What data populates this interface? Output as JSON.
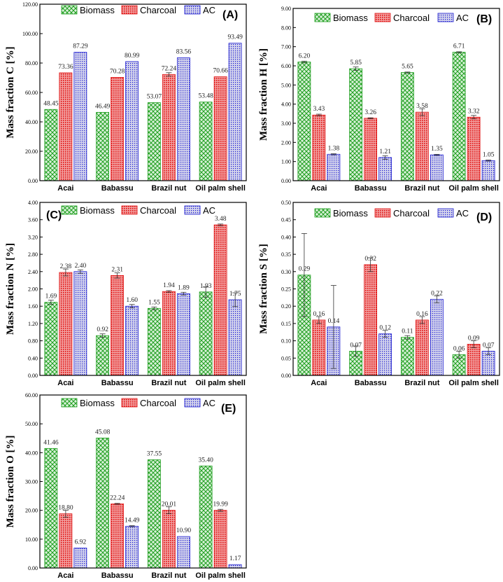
{
  "legend": [
    "Biomass",
    "Charcoal",
    "AC"
  ],
  "colors": {
    "biomass": "#1f9e1f",
    "charcoal": "#e01010",
    "ac": "#1a1ad0",
    "biomass_bg": "#d9f2d9",
    "charcoal_bg": "#f2a2a2",
    "ac_bg": "#d3d3ec"
  },
  "chart_data": [
    {
      "type": "bar",
      "title": "(A)",
      "ylabel": "Mass fraction C [%]",
      "xlabel": "",
      "ylim": [
        0,
        120
      ],
      "yticks": [
        "0.00",
        "20.00",
        "40.00",
        "60.00",
        "80.00",
        "100.00",
        "120.00"
      ],
      "categories": [
        "Acai",
        "Babassu",
        "Brazil nut",
        "Oil palm shell"
      ],
      "series": [
        {
          "name": "Biomass",
          "values": [
            48.45,
            46.49,
            53.07,
            53.48
          ],
          "labels": [
            "48.45",
            "46.49",
            "53.07",
            "53.48"
          ]
        },
        {
          "name": "Charcoal",
          "values": [
            73.36,
            70.28,
            72.24,
            70.66
          ],
          "labels": [
            "73.36",
            "70.28",
            "72.24",
            "70.66"
          ]
        },
        {
          "name": "AC",
          "values": [
            87.29,
            80.99,
            83.56,
            93.49
          ],
          "labels": [
            "87.29",
            "80.99",
            "83.56",
            "93.49"
          ]
        }
      ]
    },
    {
      "type": "bar",
      "title": "(B)",
      "ylabel": "Mass fraction H [%]",
      "xlabel": "",
      "ylim": [
        0,
        9
      ],
      "yticks": [
        "0.00",
        "1.00",
        "2.00",
        "3.00",
        "4.00",
        "5.00",
        "6.00",
        "7.00",
        "8.00",
        "9.00"
      ],
      "categories": [
        "Acai",
        "Babassu",
        "Brazil nut",
        "Oil palm shell"
      ],
      "series": [
        {
          "name": "Biomass",
          "values": [
            6.2,
            5.85,
            5.65,
            6.71
          ],
          "labels": [
            "6.20",
            "5.85",
            "5.65",
            "6.71"
          ]
        },
        {
          "name": "Charcoal",
          "values": [
            3.43,
            3.26,
            3.58,
            3.32
          ],
          "labels": [
            "3.43",
            "3.26",
            "3.58",
            "3.32"
          ]
        },
        {
          "name": "AC",
          "values": [
            1.38,
            1.21,
            1.35,
            1.05
          ],
          "labels": [
            "1.38",
            "1.21",
            "1.35",
            "1.05"
          ]
        }
      ]
    },
    {
      "type": "bar",
      "title": "(C)",
      "ylabel": "Mass fraction N [%]",
      "xlabel": "",
      "ylim": [
        0,
        4
      ],
      "yticks": [
        "0.00",
        "0.40",
        "0.80",
        "1.20",
        "1.60",
        "2.00",
        "2.40",
        "2.80",
        "3.20",
        "3.60",
        "4.00"
      ],
      "categories": [
        "Acai",
        "Babassu",
        "Brazil nut",
        "Oil palm shell"
      ],
      "series": [
        {
          "name": "Biomass",
          "values": [
            1.69,
            0.92,
            1.55,
            1.93
          ],
          "labels": [
            "1.69",
            "0.92",
            "1.55",
            "1.93"
          ]
        },
        {
          "name": "Charcoal",
          "values": [
            2.38,
            2.31,
            1.94,
            3.48
          ],
          "labels": [
            "2.38",
            "2.31",
            "1.94",
            "3.48"
          ]
        },
        {
          "name": "AC",
          "values": [
            2.4,
            1.6,
            1.89,
            1.75
          ],
          "labels": [
            "2.40",
            "1.60",
            "1.89",
            "1.75"
          ]
        }
      ]
    },
    {
      "type": "bar",
      "title": "(D)",
      "ylabel": "Mass fraction S [%]",
      "xlabel": "",
      "ylim": [
        0,
        0.5
      ],
      "yticks": [
        "0.00",
        "0.05",
        "0.10",
        "0.15",
        "0.20",
        "0.25",
        "0.30",
        "0.35",
        "0.40",
        "0.45",
        "0.50"
      ],
      "categories": [
        "Acai",
        "Babassu",
        "Brazil nut",
        "Oil palm shell"
      ],
      "series": [
        {
          "name": "Biomass",
          "values": [
            0.29,
            0.07,
            0.11,
            0.06
          ],
          "labels": [
            "0.29",
            "0.07",
            "0.11",
            "0.06"
          ]
        },
        {
          "name": "Charcoal",
          "values": [
            0.16,
            0.32,
            0.16,
            0.09
          ],
          "labels": [
            "0.16",
            "0.32",
            "0.16",
            "0.09"
          ]
        },
        {
          "name": "AC",
          "values": [
            0.14,
            0.12,
            0.22,
            0.07
          ],
          "labels": [
            "0.14",
            "0.12",
            "0.22",
            "0.07"
          ]
        }
      ]
    },
    {
      "type": "bar",
      "title": "(E)",
      "ylabel": "Mass fraction O [%]",
      "xlabel": "",
      "ylim": [
        0,
        60
      ],
      "yticks": [
        "0.00",
        "10.00",
        "20.00",
        "30.00",
        "40.00",
        "50.00",
        "60.00"
      ],
      "categories": [
        "Acai",
        "Babassu",
        "Brazil nut",
        "Oil palm shell"
      ],
      "series": [
        {
          "name": "Biomass",
          "values": [
            41.46,
            45.08,
            37.55,
            35.4
          ],
          "labels": [
            "41.46",
            "45.08",
            "37.55",
            "35.40"
          ]
        },
        {
          "name": "Charcoal",
          "values": [
            18.8,
            22.24,
            20.01,
            19.99
          ],
          "labels": [
            "18.80",
            "22.24",
            "20.01",
            "19.99"
          ]
        },
        {
          "name": "AC",
          "values": [
            6.92,
            14.49,
            10.9,
            1.17
          ],
          "labels": [
            "6.92",
            "14.49",
            "10.90",
            "1.17"
          ]
        }
      ]
    }
  ]
}
